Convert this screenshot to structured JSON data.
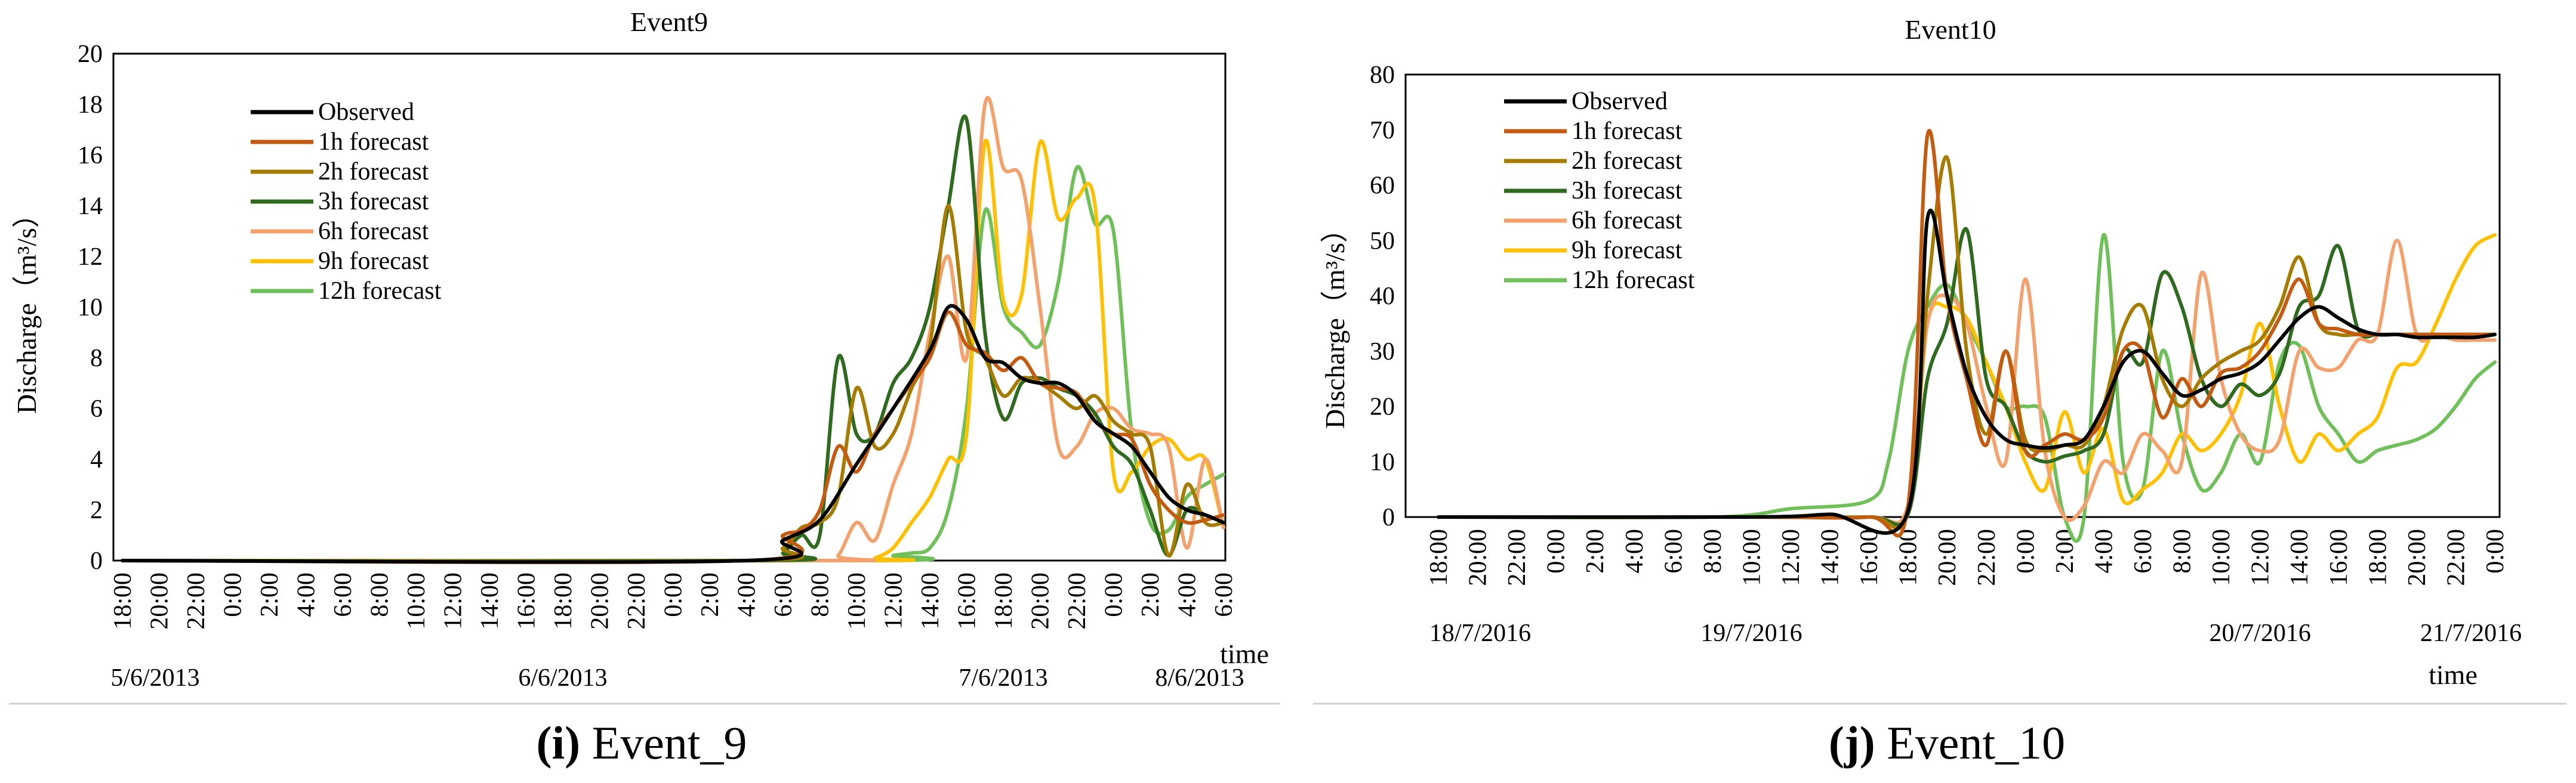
{
  "captions": [
    {
      "label": "(i)",
      "text": " Event_9"
    },
    {
      "label": "(j)",
      "text": " Event_10"
    }
  ],
  "chart_data": [
    {
      "type": "line",
      "title": "Event9",
      "ylabel": "Discharge（m³/s）",
      "xlabel": "time",
      "ylim": [
        0,
        20
      ],
      "yticks": [
        0,
        2,
        4,
        6,
        8,
        10,
        12,
        14,
        16,
        18,
        20
      ],
      "x_unit": "hours since 5/6/2013 18:00",
      "xlim": [
        0,
        60
      ],
      "xtick_labels": [
        "18:00",
        "20:00",
        "22:00",
        "0:00",
        "2:00",
        "4:00",
        "6:00",
        "8:00",
        "10:00",
        "12:00",
        "14:00",
        "16:00",
        "18:00",
        "20:00",
        "22:00",
        "0:00",
        "2:00",
        "4:00",
        "6:00",
        "8:00",
        "10:00",
        "12:00",
        "14:00",
        "16:00",
        "18:00",
        "20:00",
        "22:00",
        "0:00",
        "2:00",
        "4:00",
        "6:00"
      ],
      "date_labels": [
        {
          "text": "5/6/2013",
          "x": 0
        },
        {
          "text": "6/6/2013",
          "x": 24
        },
        {
          "text": "7/6/2013",
          "x": 48
        },
        {
          "text": "8/6/2013",
          "x": 60
        }
      ],
      "series": [
        {
          "name": "Observed",
          "color": "#000000",
          "x": [
            0,
            34,
            36,
            38,
            40,
            42,
            44,
            45,
            46,
            47,
            48,
            49,
            50,
            51,
            52,
            53,
            54,
            55,
            56,
            57,
            58,
            59,
            60
          ],
          "y": [
            0,
            0,
            0.8,
            1.6,
            3.8,
            6,
            8.3,
            10,
            9.5,
            8,
            7.8,
            7.2,
            7,
            7,
            6.5,
            5.5,
            5,
            4.5,
            3.5,
            2.5,
            2,
            1.8,
            1.5
          ]
        },
        {
          "name": "1h forecast",
          "color": "#c55a11",
          "x": [
            0,
            34,
            36,
            37,
            38,
            39,
            40,
            41,
            42,
            43,
            44,
            45,
            46,
            47,
            48,
            49,
            50,
            51,
            52,
            53,
            54,
            55,
            56,
            57,
            58,
            59,
            60
          ],
          "y": [
            0,
            0,
            1,
            1.2,
            2,
            4.5,
            3.5,
            5,
            6,
            7,
            8,
            9.8,
            8.5,
            8.2,
            7.5,
            8,
            7,
            6.8,
            6.6,
            5.5,
            5,
            4.8,
            3,
            2,
            1.5,
            1.6,
            1.8
          ]
        },
        {
          "name": "2h forecast",
          "color": "#a67c00",
          "x": [
            0,
            34,
            36,
            37,
            38,
            39,
            40,
            41,
            42,
            43,
            44,
            45,
            46,
            47,
            48,
            49,
            50,
            51,
            52,
            53,
            54,
            55,
            56,
            57,
            58,
            59,
            60
          ],
          "y": [
            0,
            0,
            0.5,
            1.3,
            1.5,
            2.5,
            6.8,
            4.5,
            5,
            6.8,
            8.5,
            14,
            9,
            8,
            6.5,
            7.2,
            7,
            6.5,
            6,
            6.5,
            5.5,
            5,
            4.5,
            0.2,
            3,
            1.5,
            1.5
          ]
        },
        {
          "name": "3h forecast",
          "color": "#2e6b1f",
          "x": [
            0,
            35,
            36,
            37,
            38,
            39,
            40,
            41,
            42,
            43,
            44,
            45,
            46,
            47,
            48,
            49,
            50,
            51,
            52,
            53,
            54,
            55,
            56,
            57,
            58,
            59,
            60
          ],
          "y": [
            0,
            0,
            0.3,
            1,
            1,
            8,
            5,
            5,
            7,
            8,
            10,
            14,
            17.4,
            9,
            5.6,
            7,
            7.2,
            6.8,
            6.5,
            5.8,
            4.5,
            3.8,
            2,
            0.2,
            2,
            1.8,
            1.5
          ]
        },
        {
          "name": "6h forecast",
          "color": "#f4a26d",
          "x": [
            0,
            38,
            39,
            40,
            41,
            42,
            43,
            44,
            45,
            46,
            47,
            48,
            49,
            50,
            51,
            52,
            53,
            54,
            55,
            56,
            57,
            58,
            59,
            60
          ],
          "y": [
            0,
            0,
            0.2,
            1.5,
            0.8,
            3,
            5,
            9,
            12,
            8,
            18,
            15.5,
            15,
            10,
            4.5,
            4.5,
            5.8,
            6,
            5.2,
            5,
            4.5,
            0.5,
            4,
            1.3
          ]
        },
        {
          "name": "9h forecast",
          "color": "#ffc000",
          "x": [
            0,
            40,
            41,
            42,
            43,
            44,
            45,
            46,
            47,
            48,
            49,
            50,
            51,
            52,
            53,
            54,
            55,
            56,
            57,
            58,
            59,
            60
          ],
          "y": [
            0,
            0,
            0.1,
            0.5,
            1.5,
            2.5,
            4,
            5,
            16.5,
            10.3,
            10.5,
            16.5,
            13.5,
            14.3,
            14,
            3.5,
            3.5,
            4.5,
            4.8,
            4,
            4,
            1.3
          ]
        },
        {
          "name": "12h forecast",
          "color": "#70c05a",
          "x": [
            0,
            41,
            42,
            43,
            44,
            45,
            46,
            47,
            48,
            49,
            50,
            51,
            52,
            53,
            54,
            55,
            56,
            57,
            58,
            59,
            60
          ],
          "y": [
            0,
            0,
            0.2,
            0.3,
            0.5,
            2,
            6,
            13.8,
            10,
            9,
            8.5,
            11,
            15.5,
            13.3,
            13,
            5,
            1.5,
            1.2,
            2.5,
            3,
            3.4
          ]
        }
      ]
    },
    {
      "type": "line",
      "title": "Event10",
      "ylabel": "Discharge（m³/s）",
      "xlabel": "time",
      "ylim": [
        0,
        80
      ],
      "yticks": [
        0,
        10,
        20,
        30,
        40,
        50,
        60,
        70,
        80
      ],
      "x_unit": "hours since 18/7/2016 18:00",
      "xlim": [
        0,
        54
      ],
      "xtick_labels": [
        "18:00",
        "20:00",
        "22:00",
        "0:00",
        "2:00",
        "4:00",
        "6:00",
        "8:00",
        "10:00",
        "12:00",
        "14:00",
        "16:00",
        "18:00",
        "20:00",
        "22:00",
        "0:00",
        "2:00",
        "4:00",
        "6:00",
        "8:00",
        "10:00",
        "12:00",
        "14:00",
        "16:00",
        "18:00",
        "20:00",
        "22:00",
        "0:00"
      ],
      "date_labels": [
        {
          "text": "18/7/2016",
          "x": 0
        },
        {
          "text": "19/7/2016",
          "x": 16
        },
        {
          "text": "20/7/2016",
          "x": 42
        },
        {
          "text": "21/7/2016",
          "x": 54
        }
      ],
      "series": [
        {
          "name": "Observed",
          "color": "#000000",
          "x": [
            0,
            16,
            20,
            24,
            25,
            26,
            27,
            28,
            29,
            30,
            31,
            32,
            33,
            34,
            35,
            36,
            37,
            38,
            39,
            40,
            41,
            42,
            43,
            44,
            45,
            46,
            47,
            48,
            49,
            50,
            51,
            52,
            53,
            54
          ],
          "y": [
            0,
            0,
            0.5,
            1,
            54,
            40,
            26,
            18,
            14,
            13,
            12.5,
            13,
            14,
            20,
            28,
            30,
            26,
            22,
            23,
            25,
            26,
            28,
            32,
            36,
            38,
            36,
            34,
            33,
            33,
            32.5,
            32.5,
            32.5,
            32.5,
            33
          ]
        },
        {
          "name": "1h forecast",
          "color": "#c55a11",
          "x": [
            0,
            16,
            22,
            24,
            25,
            26,
            27,
            28,
            29,
            30,
            31,
            32,
            33,
            34,
            35,
            36,
            37,
            38,
            39,
            40,
            41,
            42,
            43,
            44,
            45,
            46,
            47,
            48,
            49,
            50,
            51,
            52,
            53,
            54
          ],
          "y": [
            0,
            0,
            0,
            2,
            69,
            40,
            25,
            13,
            30,
            12,
            13,
            15,
            14,
            18,
            30,
            30,
            18,
            25,
            20,
            26,
            27,
            30,
            36,
            43,
            35,
            34,
            33,
            33,
            33,
            33,
            33,
            33,
            33,
            33
          ]
        },
        {
          "name": "2h forecast",
          "color": "#a67c00",
          "x": [
            0,
            16,
            22,
            24,
            25,
            26,
            27,
            28,
            29,
            30,
            31,
            32,
            33,
            34,
            35,
            36,
            37,
            38,
            39,
            40,
            41,
            42,
            43,
            44,
            45,
            46,
            47,
            48,
            49,
            50,
            51,
            52,
            53,
            54
          ],
          "y": [
            0,
            0,
            0,
            1,
            40,
            65,
            30,
            15,
            30,
            14,
            12,
            13,
            13,
            20,
            34,
            38,
            25,
            20,
            25,
            28,
            30,
            32,
            38,
            47,
            35,
            33,
            33,
            33,
            33,
            33,
            33,
            33,
            33,
            33
          ]
        },
        {
          "name": "3h forecast",
          "color": "#2e6b1f",
          "x": [
            0,
            16,
            22,
            24,
            25,
            26,
            27,
            28,
            29,
            30,
            31,
            32,
            33,
            34,
            35,
            36,
            37,
            38,
            39,
            40,
            41,
            42,
            43,
            44,
            45,
            46,
            47,
            48,
            49,
            50,
            51,
            52,
            53,
            54
          ],
          "y": [
            0,
            0,
            0,
            0.5,
            25,
            35,
            52,
            25,
            20,
            12,
            10,
            11,
            12,
            15,
            30,
            28,
            44,
            38,
            25,
            20,
            24,
            22,
            26,
            38,
            40,
            49,
            34,
            33,
            33,
            33,
            33,
            33,
            33,
            33
          ]
        },
        {
          "name": "6h forecast",
          "color": "#f4a26d",
          "x": [
            0,
            16,
            22,
            24,
            25,
            26,
            27,
            28,
            29,
            30,
            31,
            32,
            33,
            34,
            35,
            36,
            37,
            38,
            39,
            40,
            41,
            42,
            43,
            44,
            45,
            46,
            47,
            48,
            49,
            50,
            51,
            52,
            53,
            54
          ],
          "y": [
            0,
            0,
            0,
            2,
            35,
            40,
            35,
            20,
            10,
            43,
            12,
            0,
            2,
            10,
            8,
            15,
            12,
            10,
            44,
            25,
            15,
            12,
            14,
            30,
            27,
            27,
            32,
            33,
            50,
            33,
            33,
            32,
            32,
            32
          ]
        },
        {
          "name": "9h forecast",
          "color": "#ffc000",
          "x": [
            0,
            16,
            22,
            24,
            25,
            26,
            27,
            28,
            29,
            30,
            31,
            32,
            33,
            34,
            35,
            36,
            37,
            38,
            39,
            40,
            41,
            42,
            43,
            44,
            45,
            46,
            47,
            48,
            49,
            50,
            51,
            52,
            53,
            54
          ],
          "y": [
            0,
            0,
            0,
            1,
            35,
            38,
            36,
            28,
            20,
            10,
            5,
            19,
            8,
            16,
            3,
            5,
            8,
            15,
            12,
            15,
            22,
            35,
            20,
            10,
            15,
            12,
            15,
            18,
            27,
            28,
            35,
            43,
            49,
            51
          ]
        },
        {
          "name": "12h forecast",
          "color": "#70c05a",
          "x": [
            0,
            14,
            18,
            22,
            23,
            24,
            25,
            26,
            27,
            28,
            29,
            30,
            31,
            32,
            33,
            34,
            35,
            36,
            37,
            38,
            39,
            40,
            41,
            42,
            43,
            44,
            45,
            46,
            47,
            48,
            49,
            50,
            51,
            52,
            53,
            54
          ],
          "y": [
            0,
            0,
            1.5,
            3,
            10,
            30,
            38,
            42,
            35,
            28,
            20,
            20,
            18,
            0,
            0,
            51,
            10,
            5,
            30,
            15,
            5,
            8,
            15,
            10,
            28,
            31,
            20,
            15,
            10,
            12,
            13,
            14,
            16,
            20,
            25,
            28
          ]
        }
      ]
    }
  ]
}
